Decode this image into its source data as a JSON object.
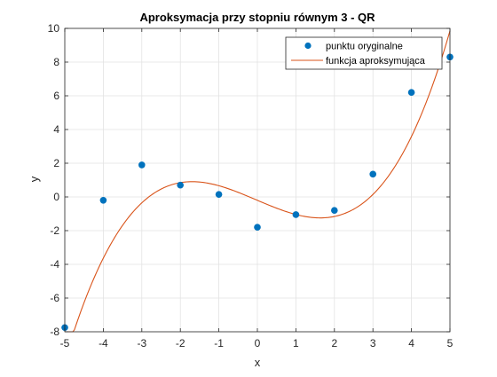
{
  "chart_data": {
    "type": "scatter",
    "title": "Aproksymacja przy stopniu równym 3 - QR",
    "xlabel": "x",
    "ylabel": "y",
    "xlim": [
      -5,
      5
    ],
    "ylim": [
      -8,
      10
    ],
    "xticks": [
      -5,
      -4,
      -3,
      -2,
      -1,
      0,
      1,
      2,
      3,
      4,
      5
    ],
    "yticks": [
      -8,
      -6,
      -4,
      -2,
      0,
      2,
      4,
      6,
      8,
      10
    ],
    "grid": true,
    "legend_position": "top-right",
    "series": [
      {
        "name": "punktu oryginalne",
        "kind": "scatter",
        "color": "#0072BD",
        "x": [
          -5,
          -4,
          -3,
          -2,
          -1,
          0,
          1,
          2,
          3,
          4,
          5
        ],
        "y": [
          -7.75,
          -0.2,
          1.9,
          0.7,
          0.15,
          -1.8,
          -1.05,
          -0.8,
          1.35,
          6.2,
          8.3
        ]
      },
      {
        "name": "funkcja aproksymująca",
        "kind": "line",
        "color": "#D95319",
        "coefficients": [
          -0.2,
          -0.97,
          0.011,
          0.117
        ]
      }
    ]
  }
}
